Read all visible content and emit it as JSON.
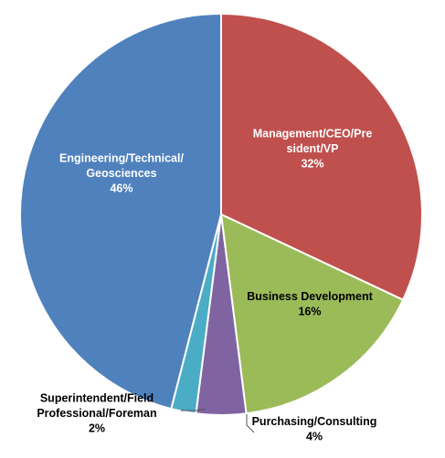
{
  "chart_data": {
    "type": "pie",
    "title": "",
    "start_angle_deg": 0,
    "direction": "clockwise",
    "slices": [
      {
        "label_lines": [
          "Management/CEO/Pre",
          "sident/VP"
        ],
        "value": 32,
        "value_label": "32%",
        "color": "#C0504D",
        "label_color": "#ffffff"
      },
      {
        "label_lines": [
          "Business Development"
        ],
        "value": 16,
        "value_label": "16%",
        "color": "#9BBB59",
        "label_color": "#000000"
      },
      {
        "label_lines": [
          "Purchasing/Consulting"
        ],
        "value": 4,
        "value_label": "4%",
        "color": "#8064A2",
        "label_color": "#000000"
      },
      {
        "label_lines": [
          "Superintendent/Field",
          "Professional/Foreman"
        ],
        "value": 2,
        "value_label": "2%",
        "color": "#4BACC6",
        "label_color": "#000000"
      },
      {
        "label_lines": [
          "Engineering/Technical/",
          "Geosciences"
        ],
        "value": 46,
        "value_label": "46%",
        "color": "#4F81BD",
        "label_color": "#ffffff"
      }
    ]
  }
}
